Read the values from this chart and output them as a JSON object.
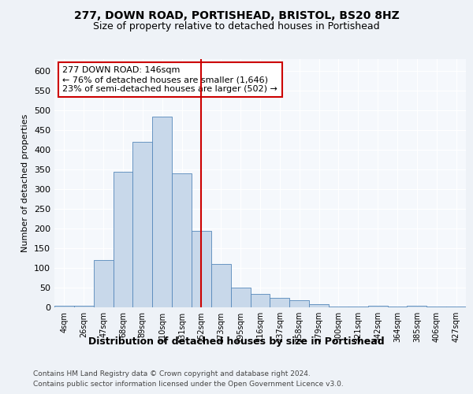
{
  "title": "277, DOWN ROAD, PORTISHEAD, BRISTOL, BS20 8HZ",
  "subtitle": "Size of property relative to detached houses in Portishead",
  "xlabel": "Distribution of detached houses by size in Portishead",
  "ylabel": "Number of detached properties",
  "categories": [
    "4sqm",
    "26sqm",
    "47sqm",
    "68sqm",
    "89sqm",
    "110sqm",
    "131sqm",
    "152sqm",
    "173sqm",
    "195sqm",
    "216sqm",
    "237sqm",
    "258sqm",
    "279sqm",
    "300sqm",
    "321sqm",
    "342sqm",
    "364sqm",
    "385sqm",
    "406sqm",
    "427sqm"
  ],
  "bar_heights": [
    5,
    5,
    120,
    345,
    420,
    485,
    340,
    195,
    110,
    50,
    35,
    25,
    18,
    8,
    3,
    3,
    5,
    3,
    5,
    3,
    3
  ],
  "bar_color": "#c8d8ea",
  "bar_edgecolor": "#5588bb",
  "vline_x": 7.0,
  "vline_color": "#cc0000",
  "ylim": [
    0,
    630
  ],
  "yticks": [
    0,
    50,
    100,
    150,
    200,
    250,
    300,
    350,
    400,
    450,
    500,
    550,
    600
  ],
  "annotation_text": "277 DOWN ROAD: 146sqm\n← 76% of detached houses are smaller (1,646)\n23% of semi-detached houses are larger (502) →",
  "annotation_box_facecolor": "#ffffff",
  "annotation_box_edgecolor": "#cc0000",
  "footer_line1": "Contains HM Land Registry data © Crown copyright and database right 2024.",
  "footer_line2": "Contains public sector information licensed under the Open Government Licence v3.0.",
  "bg_color": "#eef2f7",
  "plot_bg_color": "#f5f8fc",
  "grid_color": "#ffffff",
  "title_fontsize": 10,
  "subtitle_fontsize": 9,
  "ylabel_fontsize": 8,
  "xtick_fontsize": 7,
  "ytick_fontsize": 8,
  "annot_fontsize": 8,
  "xlabel_fontsize": 9,
  "footer_fontsize": 6.5
}
